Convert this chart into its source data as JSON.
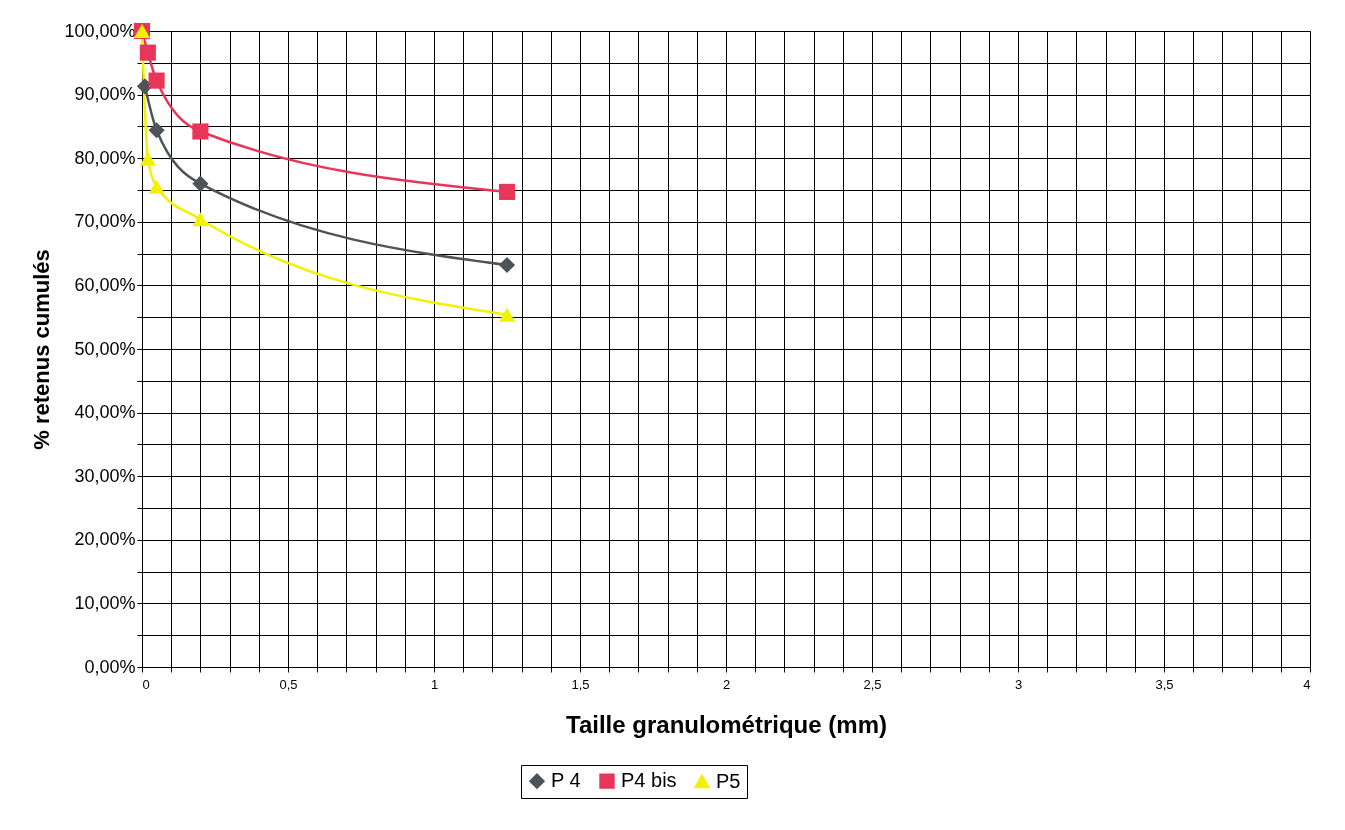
{
  "chart_data": {
    "type": "line",
    "xlabel": "Taille granulométrique (mm)",
    "ylabel": "% retenus cumulés",
    "series": [
      {
        "name": "P 4",
        "color": "#4d5358",
        "marker": "diamond",
        "x": [
          0.01,
          0.05,
          0.2,
          1.25
        ],
        "values": [
          91.3,
          84.4,
          76,
          63.2
        ]
      },
      {
        "name": "P4 bis",
        "color": "#e8365a",
        "marker": "square",
        "x": [
          0,
          0.02,
          0.05,
          0.2,
          1.25
        ],
        "values": [
          100,
          96.6,
          92.2,
          84.2,
          74.7
        ]
      },
      {
        "name": "P5",
        "color": "#f2f200",
        "marker": "triangle",
        "x": [
          0,
          0.02,
          0.05,
          0.2,
          1.25
        ],
        "values": [
          100,
          79.9,
          75.5,
          70.4,
          55.4
        ]
      }
    ],
    "xlim": [
      0,
      4
    ],
    "xticks": [
      0,
      {
        "value": 0.1,
        "label": null
      },
      {
        "value": 0.2,
        "label": null
      },
      {
        "value": 0.3,
        "label": null
      },
      {
        "value": 0.4,
        "label": null
      },
      {
        "value": 0.5,
        "label": "0,5"
      },
      {
        "value": 0.6,
        "label": null
      },
      {
        "value": 0.7,
        "label": null
      },
      {
        "value": 0.8,
        "label": null
      },
      {
        "value": 0.9,
        "label": null
      },
      1,
      {
        "value": 1.1,
        "label": null
      },
      {
        "value": 1.2,
        "label": null
      },
      {
        "value": 1.3,
        "label": null
      },
      {
        "value": 1.4,
        "label": null
      },
      {
        "value": 1.5,
        "label": "1,5"
      },
      {
        "value": 1.6,
        "label": null
      },
      {
        "value": 1.7,
        "label": null
      },
      {
        "value": 1.8,
        "label": null
      },
      {
        "value": 1.9,
        "label": null
      },
      2,
      {
        "value": 2.1,
        "label": null
      },
      {
        "value": 2.2,
        "label": null
      },
      {
        "value": 2.3,
        "label": null
      },
      {
        "value": 2.4,
        "label": null
      },
      {
        "value": 2.5,
        "label": "2,5"
      },
      {
        "value": 2.6,
        "label": null
      },
      {
        "value": 2.7,
        "label": null
      },
      {
        "value": 2.8,
        "label": null
      },
      {
        "value": 2.9,
        "label": null
      },
      3,
      {
        "value": 3.1,
        "label": null
      },
      {
        "value": 3.2,
        "label": null
      },
      {
        "value": 3.3,
        "label": null
      },
      {
        "value": 3.4,
        "label": null
      },
      {
        "value": 3.5,
        "label": "3,5"
      },
      {
        "value": 3.6,
        "label": null
      },
      {
        "value": 3.7,
        "label": null
      },
      {
        "value": 3.8,
        "label": null
      },
      {
        "value": 3.9,
        "label": null
      },
      4
    ],
    "ylim": [
      0,
      100
    ],
    "yticks": [
      {
        "value": 0,
        "label": "0,00%"
      },
      {
        "value": 5,
        "label": null
      },
      {
        "value": 10,
        "label": "10,00%"
      },
      {
        "value": 15,
        "label": null
      },
      {
        "value": 20,
        "label": "20,00%"
      },
      {
        "value": 25,
        "label": null
      },
      {
        "value": 30,
        "label": "30,00%"
      },
      {
        "value": 35,
        "label": null
      },
      {
        "value": 40,
        "label": "40,00%"
      },
      {
        "value": 45,
        "label": null
      },
      {
        "value": 50,
        "label": "50,00%"
      },
      {
        "value": 55,
        "label": null
      },
      {
        "value": 60,
        "label": "60,00%"
      },
      {
        "value": 65,
        "label": null
      },
      {
        "value": 70,
        "label": "70,00%"
      },
      {
        "value": 75,
        "label": null
      },
      {
        "value": 80,
        "label": "80,00%"
      },
      {
        "value": 85,
        "label": null
      },
      {
        "value": 90,
        "label": "90,00%"
      },
      {
        "value": 95,
        "label": null
      },
      {
        "value": 100,
        "label": "100,00%"
      }
    ],
    "grid": true,
    "legend": "bottom",
    "line_style": "solid"
  }
}
